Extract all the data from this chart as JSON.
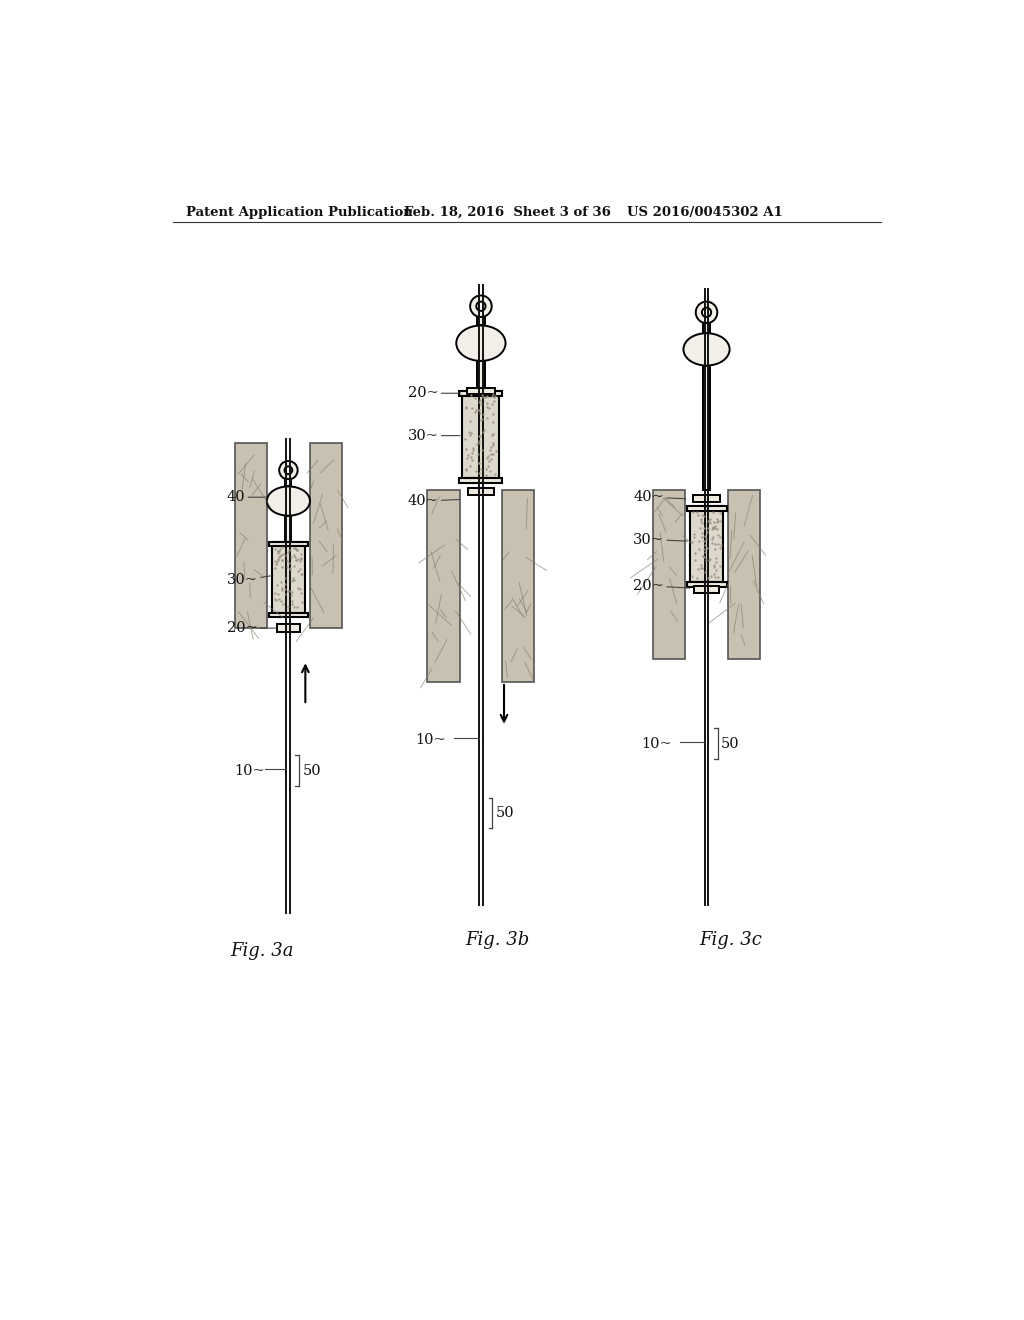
{
  "background_color": "#ffffff",
  "header_left": "Patent Application Publication",
  "header_mid": "Feb. 18, 2016  Sheet 3 of 36",
  "header_right": "US 2016/0045302 A1",
  "fig_labels": [
    "Fig. 3a",
    "Fig. 3b",
    "Fig. 3c"
  ],
  "tissue_color": "#c8c0b0",
  "vein_color": "#888070",
  "device_outline": "#000000",
  "balloon_fill": "#f2efe8",
  "stent_fill": "#ddd8cc",
  "cap_fill": "#eeeae0",
  "wire_color": "#111111",
  "arrow_color": "#000000",
  "label_color": "#111111",
  "leader_color": "#444444"
}
